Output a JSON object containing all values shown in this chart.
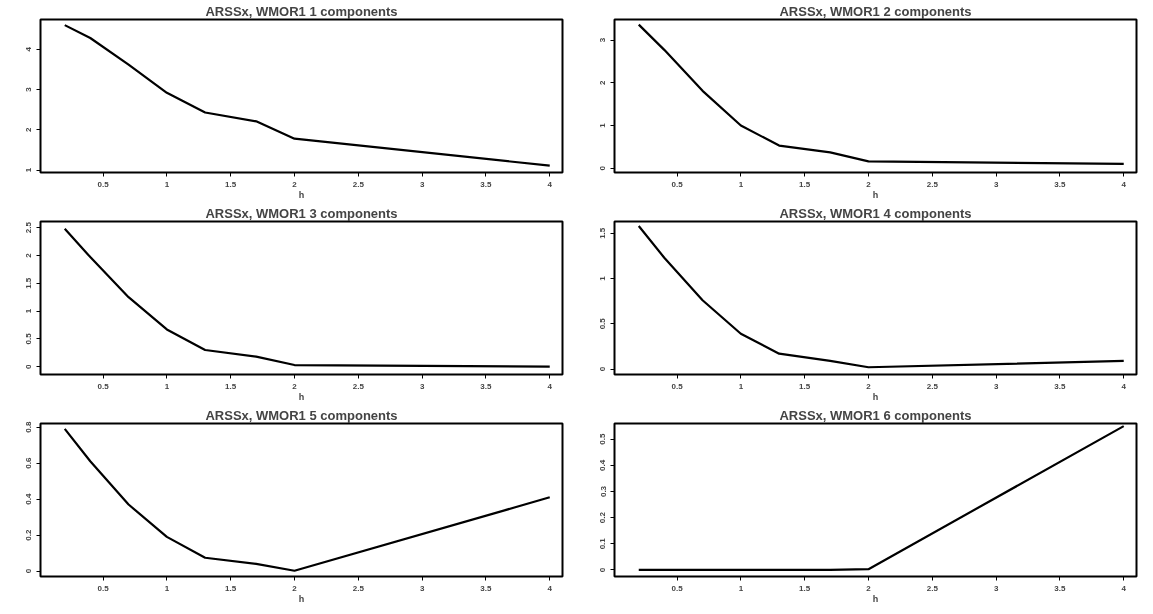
{
  "chart_data": [
    {
      "type": "line",
      "title": "ARSSx, WMOR1 1 components",
      "xlabel": "h",
      "x": [
        0.2,
        0.4,
        0.7,
        1.0,
        1.3,
        1.7,
        2.0,
        4.0
      ],
      "series": [
        {
          "color": "#000000",
          "values": [
            4.6,
            4.28,
            3.62,
            2.92,
            2.43,
            2.21,
            1.78,
            1.11
          ]
        }
      ],
      "xlim": [
        0.01,
        4.1
      ],
      "xticks": [
        0.5,
        1.0,
        1.5,
        2.0,
        2.5,
        3.0,
        3.5,
        4.0
      ],
      "ylim": [
        0.94,
        4.74
      ],
      "yticks": [
        1,
        2,
        3,
        4
      ],
      "grid": false
    },
    {
      "type": "line",
      "title": "ARSSx, WMOR1 2 components",
      "xlabel": "h",
      "x": [
        0.2,
        0.4,
        0.7,
        1.0,
        1.3,
        1.7,
        2.0,
        4.0
      ],
      "series": [
        {
          "color": "#000000",
          "values": [
            3.36,
            2.77,
            1.81,
            1.0,
            0.53,
            0.37,
            0.16,
            0.1
          ]
        }
      ],
      "xlim": [
        0.01,
        4.1
      ],
      "xticks": [
        0.5,
        1.0,
        1.5,
        2.0,
        2.5,
        3.0,
        3.5,
        4.0
      ],
      "ylim": [
        -0.1,
        3.48
      ],
      "yticks": [
        0,
        1,
        2,
        3
      ],
      "grid": false
    },
    {
      "type": "line",
      "title": "ARSSx, WMOR1 3 components",
      "xlabel": "h",
      "x": [
        0.2,
        0.4,
        0.7,
        1.0,
        1.3,
        1.7,
        2.0,
        4.0
      ],
      "series": [
        {
          "color": "#000000",
          "values": [
            2.48,
            1.97,
            1.25,
            0.67,
            0.3,
            0.18,
            0.03,
            0.0
          ]
        }
      ],
      "xlim": [
        0.01,
        4.1
      ],
      "xticks": [
        0.5,
        1.0,
        1.5,
        2.0,
        2.5,
        3.0,
        3.5,
        4.0
      ],
      "ylim": [
        -0.14,
        2.61
      ],
      "yticks": [
        0.0,
        0.5,
        1.0,
        1.5,
        2.0,
        2.5
      ],
      "grid": false
    },
    {
      "type": "line",
      "title": "ARSSx, WMOR1 4 components",
      "xlabel": "h",
      "x": [
        0.2,
        0.4,
        0.7,
        1.0,
        1.3,
        1.7,
        2.0,
        4.0
      ],
      "series": [
        {
          "color": "#000000",
          "values": [
            1.58,
            1.23,
            0.76,
            0.39,
            0.17,
            0.09,
            0.02,
            0.09
          ]
        }
      ],
      "xlim": [
        0.01,
        4.1
      ],
      "xticks": [
        0.5,
        1.0,
        1.5,
        2.0,
        2.5,
        3.0,
        3.5,
        4.0
      ],
      "ylim": [
        -0.06,
        1.63
      ],
      "yticks": [
        0.0,
        0.5,
        1.0,
        1.5
      ],
      "grid": false
    },
    {
      "type": "line",
      "title": "ARSSx, WMOR1 5 components",
      "xlabel": "h",
      "x": [
        0.2,
        0.4,
        0.7,
        1.0,
        1.3,
        1.7,
        2.0,
        4.0
      ],
      "series": [
        {
          "color": "#000000",
          "values": [
            0.79,
            0.61,
            0.37,
            0.19,
            0.074,
            0.04,
            0.002,
            0.41
          ]
        }
      ],
      "xlim": [
        0.01,
        4.1
      ],
      "xticks": [
        0.5,
        1.0,
        1.5,
        2.0,
        2.5,
        3.0,
        3.5,
        4.0
      ],
      "ylim": [
        -0.03,
        0.82
      ],
      "yticks": [
        0.0,
        0.2,
        0.4,
        0.6,
        0.8
      ],
      "grid": false
    },
    {
      "type": "line",
      "title": "ARSSx, WMOR1 6 components",
      "xlabel": "h",
      "x": [
        0.2,
        0.4,
        0.7,
        1.0,
        1.3,
        1.7,
        2.0,
        4.0
      ],
      "series": [
        {
          "color": "#000000",
          "values": [
            0.0,
            0.0,
            0.0,
            0.0,
            0.0,
            0.0,
            0.003,
            0.55
          ]
        }
      ],
      "xlim": [
        0.01,
        4.1
      ],
      "xticks": [
        0.5,
        1.0,
        1.5,
        2.0,
        2.5,
        3.0,
        3.5,
        4.0
      ],
      "ylim": [
        -0.025,
        0.56
      ],
      "yticks": [
        0.0,
        0.1,
        0.2,
        0.3,
        0.4,
        0.5
      ],
      "grid": false
    }
  ]
}
